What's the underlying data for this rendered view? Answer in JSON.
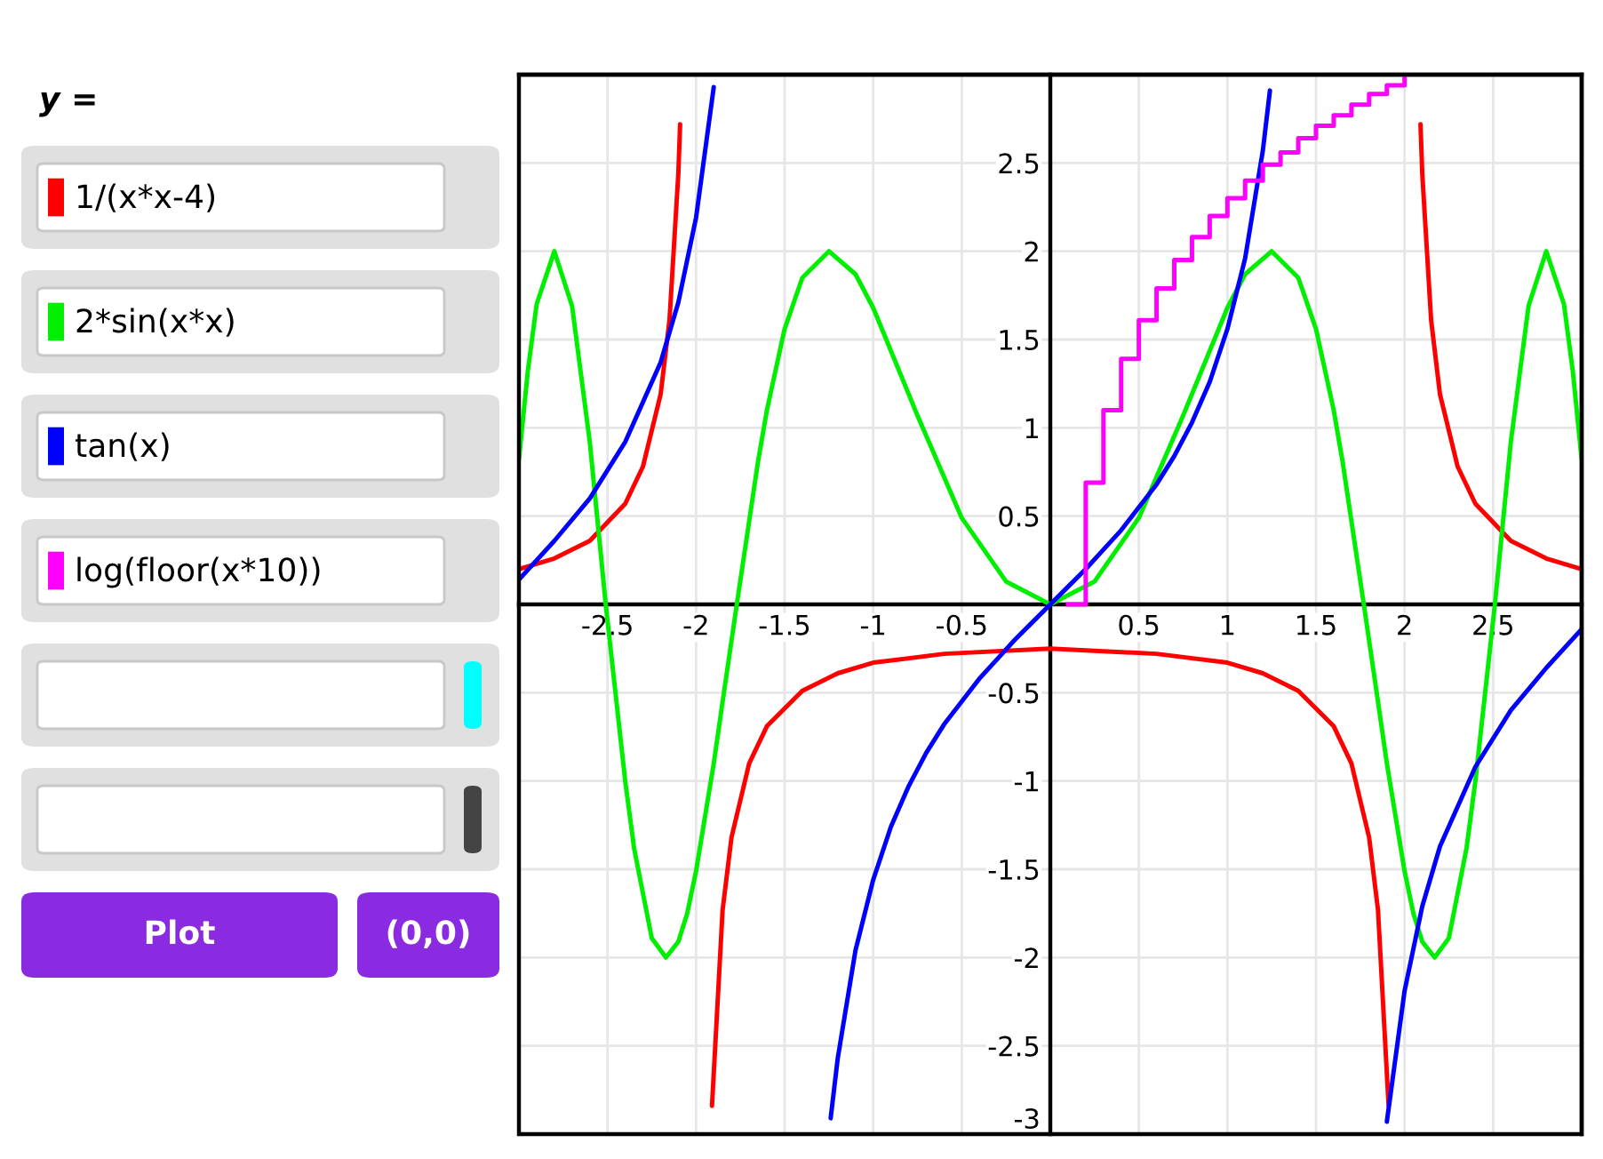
{
  "chart_data": {
    "type": "line",
    "legend_title": "y =",
    "legend": "left",
    "grid": true,
    "xlim": [
      -3,
      3
    ],
    "ylim": [
      -3,
      3
    ],
    "xticks": [
      -2.5,
      -2,
      -1.5,
      -1,
      -0.5,
      0.5,
      1,
      1.5,
      2,
      2.5
    ],
    "yticks": [
      -3,
      -2.5,
      -2,
      -1.5,
      -1,
      -0.5,
      0.5,
      1,
      1.5,
      2,
      2.5
    ],
    "annotations": [
      "Plot",
      "(0,0)"
    ],
    "series": [
      {
        "name": "1/(x*x-4)",
        "color": "#ff0000",
        "x": [
          -3,
          -2.8,
          -2.6,
          -2.4,
          -2.3,
          -2.2,
          -2.15,
          -2.1,
          -2.09,
          -2.0,
          -1.91,
          -1.85,
          -1.8,
          -1.7,
          -1.6,
          -1.4,
          -1.2,
          -1,
          -0.6,
          0,
          0.6,
          1,
          1.2,
          1.4,
          1.6,
          1.7,
          1.8,
          1.85,
          1.91,
          2.0,
          2.09,
          2.1,
          2.15,
          2.2,
          2.3,
          2.4,
          2.6,
          2.8,
          3
        ],
        "values": [
          0.2,
          0.26,
          0.36,
          0.57,
          0.78,
          1.19,
          1.61,
          2.44,
          2.72,
          null,
          -2.84,
          -1.73,
          -1.32,
          -0.9,
          -0.69,
          -0.49,
          -0.39,
          -0.33,
          -0.28,
          -0.25,
          -0.28,
          -0.33,
          -0.39,
          -0.49,
          -0.69,
          -0.9,
          -1.32,
          -1.73,
          -2.84,
          null,
          2.72,
          2.44,
          1.61,
          1.19,
          0.78,
          0.57,
          0.36,
          0.26,
          0.2
        ]
      },
      {
        "name": "2*sin(x*x)",
        "color": "#00ee00",
        "x": [
          -3,
          -2.95,
          -2.9,
          -2.8,
          -2.7,
          -2.6,
          -2.51,
          -2.4,
          -2.35,
          -2.25,
          -2.17,
          -2.1,
          -2.05,
          -2.0,
          -1.9,
          -1.85,
          -1.77,
          -1.65,
          -1.6,
          -1.5,
          -1.4,
          -1.25,
          -1.1,
          -1,
          -0.75,
          -0.5,
          -0.25,
          0,
          0.25,
          0.5,
          0.75,
          1,
          1.1,
          1.25,
          1.4,
          1.5,
          1.6,
          1.65,
          1.77,
          1.85,
          1.9,
          2.0,
          2.05,
          2.1,
          2.17,
          2.25,
          2.35,
          2.4,
          2.51,
          2.6,
          2.7,
          2.8,
          2.9,
          2.95,
          3
        ],
        "values": [
          0.82,
          1.32,
          1.7,
          2,
          1.69,
          0.92,
          0,
          -1.0,
          -1.38,
          -1.89,
          -2,
          -1.91,
          -1.75,
          -1.51,
          -0.9,
          -0.55,
          0,
          0.81,
          1.1,
          1.56,
          1.85,
          2,
          1.87,
          1.68,
          1.07,
          0.49,
          0.13,
          0,
          0.13,
          0.49,
          1.07,
          1.68,
          1.87,
          2,
          1.85,
          1.56,
          1.1,
          0.81,
          0,
          -0.55,
          -0.9,
          -1.51,
          -1.75,
          -1.91,
          -2,
          -1.89,
          -1.38,
          -1.0,
          0,
          0.92,
          1.69,
          2,
          1.7,
          1.32,
          0.82
        ]
      },
      {
        "name": "tan(x)",
        "color": "#0000ff",
        "x": [
          -3,
          -2.8,
          -2.6,
          -2.4,
          -2.2,
          -2.1,
          -2.0,
          -1.9,
          -1.57,
          -1.24,
          -1.2,
          -1.1,
          -1,
          -0.9,
          -0.8,
          -0.7,
          -0.6,
          -0.5,
          -0.4,
          -0.3,
          -0.2,
          -0.1,
          0,
          0.1,
          0.2,
          0.3,
          0.4,
          0.5,
          0.6,
          0.7,
          0.8,
          0.9,
          1,
          1.1,
          1.2,
          1.24,
          1.57,
          1.9,
          2.0,
          2.1,
          2.2,
          2.4,
          2.6,
          2.8,
          3
        ],
        "values": [
          0.14,
          0.36,
          0.6,
          0.92,
          1.37,
          1.71,
          2.19,
          2.93,
          null,
          -2.91,
          -2.57,
          -1.96,
          -1.56,
          -1.26,
          -1.03,
          -0.84,
          -0.68,
          -0.55,
          -0.42,
          -0.31,
          -0.2,
          -0.1,
          0,
          0.1,
          0.2,
          0.31,
          0.42,
          0.55,
          0.68,
          0.84,
          1.03,
          1.26,
          1.56,
          1.96,
          2.57,
          2.91,
          null,
          -2.93,
          -2.19,
          -1.71,
          -1.37,
          -0.92,
          -0.6,
          -0.36,
          -0.14
        ]
      },
      {
        "name": "log(floor(x*10))",
        "color": "#ff00ff",
        "type": "step",
        "x": [
          0.1,
          0.2,
          0.3,
          0.4,
          0.5,
          0.6,
          0.7,
          0.8,
          0.9,
          1.0,
          1.1,
          1.2,
          1.3,
          1.4,
          1.5,
          1.6,
          1.7,
          1.8,
          1.9,
          2.0
        ],
        "values": [
          0,
          0.69,
          1.1,
          1.39,
          1.61,
          1.79,
          1.95,
          2.08,
          2.2,
          2.3,
          2.4,
          2.49,
          2.56,
          2.64,
          2.71,
          2.77,
          2.83,
          2.89,
          2.94,
          2.99
        ]
      }
    ]
  }
}
